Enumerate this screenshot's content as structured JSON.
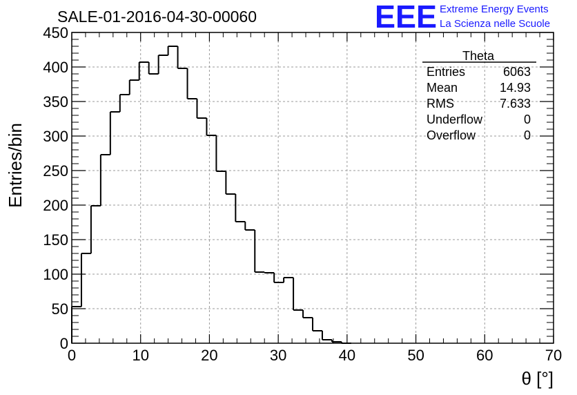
{
  "logo": {
    "mark": "EEE",
    "line1": "Extreme Energy Events",
    "line2": "La Scienza nelle Scuole",
    "color": "#1a1aff"
  },
  "chart_data": {
    "type": "histogram",
    "title": "SALE-01-2016-04-30-00060",
    "xlabel": "θ [°]",
    "ylabel": "Entries/bin",
    "xlim": [
      0,
      70
    ],
    "ylim": [
      0,
      450
    ],
    "x_ticks": [
      "0",
      "10",
      "20",
      "30",
      "40",
      "50",
      "60",
      "70"
    ],
    "y_ticks": [
      "0",
      "50",
      "100",
      "150",
      "200",
      "250",
      "300",
      "350",
      "400",
      "450"
    ],
    "grid": true,
    "legend": "none",
    "line_color": "#000000",
    "bins": {
      "low_edges": [
        0,
        1.4,
        2.8,
        4.2,
        5.6,
        7,
        8.4,
        9.8,
        11.2,
        12.6,
        14,
        15.4,
        16.8,
        18.2,
        19.6,
        21,
        22.4,
        23.8,
        25.2,
        26.6,
        28,
        29.4,
        30.8,
        32.2,
        33.6,
        35,
        36.4,
        37.8,
        39.2
      ],
      "width": 1.4,
      "counts": [
        53,
        130,
        199,
        273,
        335,
        360,
        381,
        407,
        390,
        417,
        430,
        398,
        354,
        326,
        301,
        249,
        216,
        176,
        164,
        103,
        102,
        88,
        95,
        48,
        37,
        18,
        5,
        2,
        0
      ]
    },
    "stats_box": {
      "title": "Theta",
      "rows": [
        {
          "label": "Entries",
          "value": "6063"
        },
        {
          "label": "Mean",
          "value": "14.93"
        },
        {
          "label": "RMS",
          "value": "7.633"
        },
        {
          "label": "Underflow",
          "value": "0"
        },
        {
          "label": "Overflow",
          "value": "0"
        }
      ]
    }
  }
}
